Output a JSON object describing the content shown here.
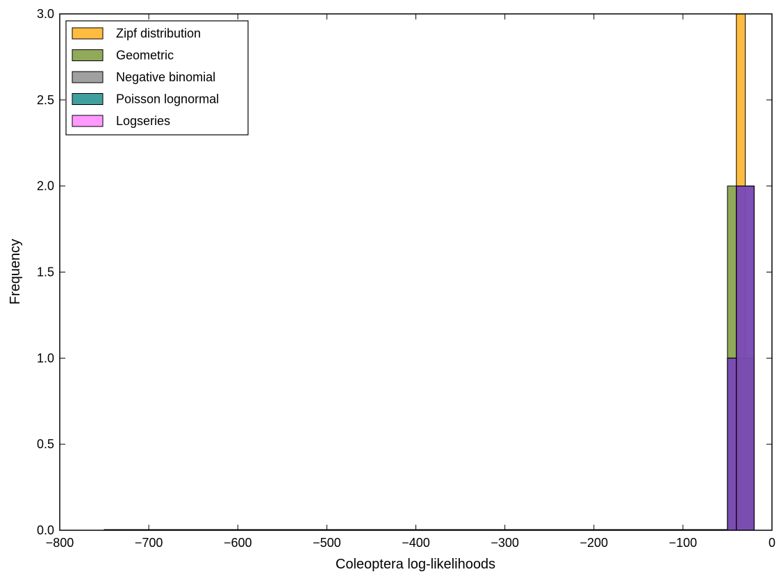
{
  "chart_data": {
    "type": "histogram",
    "title": "",
    "xlabel": "Coleoptera log-likelihoods",
    "ylabel": "Frequency",
    "xlim": [
      -800,
      0
    ],
    "ylim": [
      0,
      3.0
    ],
    "x_ticks": [
      -800,
      -700,
      -600,
      -500,
      -400,
      -300,
      -200,
      -100,
      0
    ],
    "x_tick_labels": [
      "−800",
      "−700",
      "−600",
      "−500",
      "−400",
      "−300",
      "−200",
      "−100",
      "0"
    ],
    "y_ticks": [
      0.0,
      0.5,
      1.0,
      1.5,
      2.0,
      2.5,
      3.0
    ],
    "y_tick_labels": [
      "0.0",
      "0.5",
      "1.0",
      "1.5",
      "2.0",
      "2.5",
      "3.0"
    ],
    "grid": false,
    "legend_position": "top-left",
    "series": [
      {
        "name": "Zipf distribution",
        "color": "#ffa500",
        "opacity": 0.75,
        "bins": [
          {
            "x0": -750,
            "x1": -40,
            "count": 0
          },
          {
            "x0": -40,
            "x1": -30,
            "count": 3
          }
        ]
      },
      {
        "name": "Geometric",
        "color": "#6b8e23",
        "opacity": 0.75,
        "bins": [
          {
            "x0": -750,
            "x1": -50,
            "count": 0
          },
          {
            "x0": -50,
            "x1": -40,
            "count": 2
          },
          {
            "x0": -40,
            "x1": -20,
            "count": 1
          }
        ]
      },
      {
        "name": "Negative binomial",
        "color": "#808080",
        "opacity": 0.75,
        "bins": [
          {
            "x0": -750,
            "x1": -50,
            "count": 0
          },
          {
            "x0": -50,
            "x1": -40,
            "count": 1
          },
          {
            "x0": -40,
            "x1": -20,
            "count": 2
          }
        ]
      },
      {
        "name": "Poisson lognormal",
        "color": "#008080",
        "opacity": 0.75,
        "bins": [
          {
            "x0": -750,
            "x1": -50,
            "count": 0
          },
          {
            "x0": -50,
            "x1": -40,
            "count": 1
          },
          {
            "x0": -40,
            "x1": -20,
            "count": 2
          }
        ]
      },
      {
        "name": "Logseries",
        "color": "#ff00ff",
        "opacity": 0.4,
        "bins": [
          {
            "x0": -750,
            "x1": -50,
            "count": 0
          },
          {
            "x0": -50,
            "x1": -40,
            "count": 1
          },
          {
            "x0": -40,
            "x1": -20,
            "count": 2
          }
        ]
      }
    ]
  }
}
